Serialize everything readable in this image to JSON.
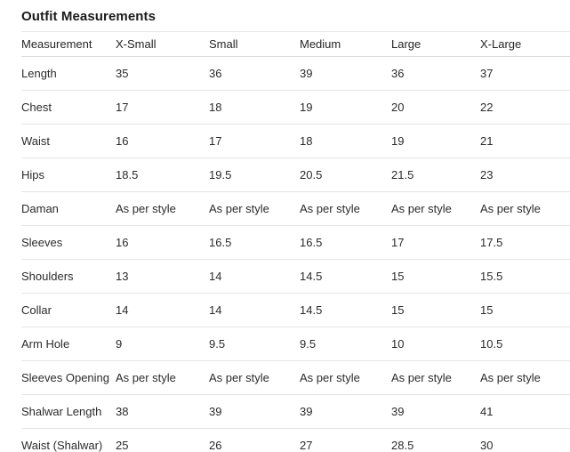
{
  "page": {
    "title": "Outfit Measurements"
  },
  "table": {
    "columns": [
      "Measurement",
      "X-Small",
      "Small",
      "Medium",
      "Large",
      "X-Large"
    ],
    "rows": [
      {
        "label": "Length",
        "values": [
          "35",
          "36",
          "39",
          "36",
          "37"
        ]
      },
      {
        "label": "Chest",
        "values": [
          "17",
          "18",
          "19",
          "20",
          "22"
        ]
      },
      {
        "label": "Waist",
        "values": [
          "16",
          "17",
          "18",
          "19",
          "21"
        ]
      },
      {
        "label": "Hips",
        "values": [
          "18.5",
          "19.5",
          "20.5",
          "21.5",
          "23"
        ]
      },
      {
        "label": "Daman",
        "values": [
          "As per style",
          "As per style",
          "As per style",
          "As per style",
          "As per style"
        ]
      },
      {
        "label": "Sleeves",
        "values": [
          "16",
          "16.5",
          "16.5",
          "17",
          "17.5"
        ]
      },
      {
        "label": "Shoulders",
        "values": [
          "13",
          "14",
          "14.5",
          "15",
          "15.5"
        ]
      },
      {
        "label": "Collar",
        "values": [
          "14",
          "14",
          "14.5",
          "15",
          "15"
        ]
      },
      {
        "label": "Arm Hole",
        "values": [
          "9",
          "9.5",
          "9.5",
          "10",
          "10.5"
        ]
      },
      {
        "label": "Sleeves Opening",
        "values": [
          "As per style",
          "As per style",
          "As per style",
          "As per style",
          "As per style"
        ]
      },
      {
        "label": "Shalwar Length",
        "values": [
          "38",
          "39",
          "39",
          "39",
          "41"
        ]
      },
      {
        "label": "Waist (Shalwar)",
        "values": [
          "25",
          "26",
          "27",
          "28.5",
          "30"
        ]
      }
    ]
  },
  "colors": {
    "background": "#ffffff",
    "text": "#2b2b2b",
    "title_text": "#1a1a1a",
    "divider": "#e4e4e4"
  }
}
